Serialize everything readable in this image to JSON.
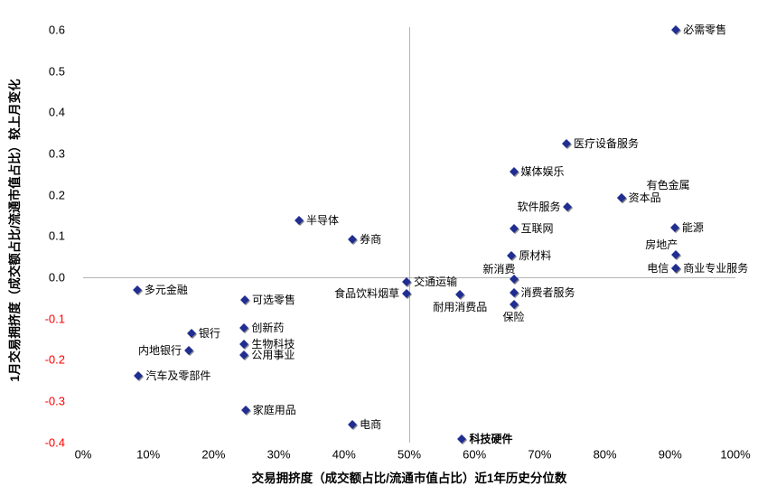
{
  "chart_data": {
    "type": "scatter",
    "title": "",
    "xlabel": "交易拥挤度（成交额占比/流通市值占比）近1年历史分位数",
    "ylabel": "1月交易拥挤度（成交额占比/流通市值占比）较上月变化",
    "xlim": [
      0,
      100
    ],
    "ylim": [
      -0.4,
      0.6
    ],
    "x_tick_labels": [
      "0%",
      "10%",
      "20%",
      "30%",
      "40%",
      "50%",
      "60%",
      "70%",
      "80%",
      "90%",
      "100%"
    ],
    "y_tick_labels": [
      "0.6",
      "0.5",
      "0.4",
      "0.3",
      "0.2",
      "0.1",
      "0.0",
      "-0.1",
      "-0.2",
      "-0.3",
      "-0.4"
    ],
    "grid": "crosshair at y=0 and x=50%",
    "legend": "none",
    "marker": "diamond",
    "colors": {
      "marker": "#202e91",
      "axis_line": "#b4b4b4",
      "negative_tick": "#ff0000",
      "text": "#000000"
    },
    "points": [
      {
        "label": "必需零售",
        "x": 90.9,
        "y": 0.6,
        "label_pos": "right"
      },
      {
        "label": "医疗设备服务",
        "x": 74.1,
        "y": 0.323,
        "label_pos": "right"
      },
      {
        "label": "媒体娱乐",
        "x": 66.0,
        "y": 0.256,
        "label_pos": "right"
      },
      {
        "label": "有色金属",
        "x": 82.5,
        "y": 0.192,
        "label_pos": "above-right"
      },
      {
        "label": "资本品",
        "x": 82.5,
        "y": 0.192,
        "label_pos": "right"
      },
      {
        "label": "软件服务",
        "x": 74.3,
        "y": 0.17,
        "label_pos": "left"
      },
      {
        "label": "半导体",
        "x": 33.1,
        "y": 0.138,
        "label_pos": "right"
      },
      {
        "label": "能源",
        "x": 90.7,
        "y": 0.121,
        "label_pos": "right"
      },
      {
        "label": "互联网",
        "x": 66.0,
        "y": 0.118,
        "label_pos": "right"
      },
      {
        "label": "券商",
        "x": 41.3,
        "y": 0.093,
        "label_pos": "right"
      },
      {
        "label": "房地产",
        "x": 90.9,
        "y": 0.055,
        "label_pos": "above-left"
      },
      {
        "label": "原材料",
        "x": 65.7,
        "y": 0.053,
        "label_pos": "right"
      },
      {
        "label": "电信",
        "x": 90.9,
        "y": 0.022,
        "label_pos": "left"
      },
      {
        "label": "商业专业服务",
        "x": 90.9,
        "y": 0.022,
        "label_pos": "right"
      },
      {
        "label": "新消费",
        "x": 66.0,
        "y": -0.005,
        "label_pos": "above-left"
      },
      {
        "label": "交通运输",
        "x": 49.6,
        "y": -0.012,
        "label_pos": "right"
      },
      {
        "label": "多元金融",
        "x": 8.3,
        "y": -0.03,
        "label_pos": "right"
      },
      {
        "label": "消费者服务",
        "x": 66.0,
        "y": -0.037,
        "label_pos": "right"
      },
      {
        "label": "食品饮料烟草",
        "x": 49.6,
        "y": -0.04,
        "label_pos": "left"
      },
      {
        "label": "耐用消费品",
        "x": 57.8,
        "y": -0.042,
        "label_pos": "below"
      },
      {
        "label": "可选零售",
        "x": 24.8,
        "y": -0.055,
        "label_pos": "right"
      },
      {
        "label": "保险",
        "x": 66.0,
        "y": -0.066,
        "label_pos": "below"
      },
      {
        "label": "创新药",
        "x": 24.7,
        "y": -0.123,
        "label_pos": "right"
      },
      {
        "label": "银行",
        "x": 16.6,
        "y": -0.135,
        "label_pos": "right"
      },
      {
        "label": "生物科技",
        "x": 24.7,
        "y": -0.161,
        "label_pos": "right"
      },
      {
        "label": "内地银行",
        "x": 16.2,
        "y": -0.178,
        "label_pos": "left"
      },
      {
        "label": "公用事业",
        "x": 24.7,
        "y": -0.188,
        "label_pos": "right"
      },
      {
        "label": "汽车及零部件",
        "x": 8.5,
        "y": -0.238,
        "label_pos": "right"
      },
      {
        "label": "家庭用品",
        "x": 24.9,
        "y": -0.322,
        "label_pos": "right"
      },
      {
        "label": "电商",
        "x": 41.3,
        "y": -0.358,
        "label_pos": "right"
      },
      {
        "label": "科技硬件",
        "x": 58.1,
        "y": -0.392,
        "label_pos": "right",
        "bold": true
      }
    ]
  }
}
